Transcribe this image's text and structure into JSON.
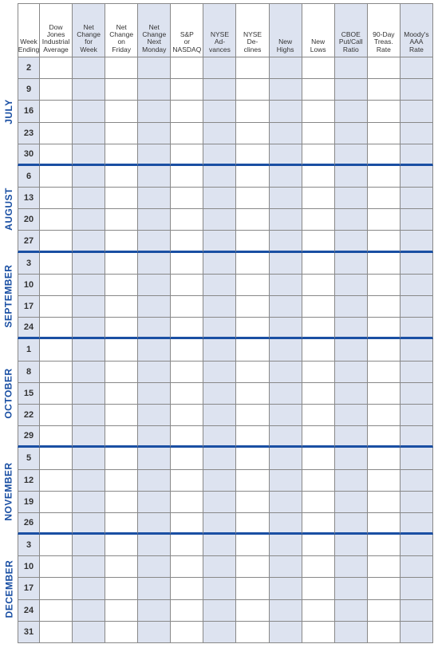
{
  "columns": [
    {
      "label": "Week\nEnding",
      "shaded": false
    },
    {
      "label": "Dow Jones\nIndustrial\nAverage",
      "shaded": false
    },
    {
      "label": "Net\nChange\nfor\nWeek",
      "shaded": true
    },
    {
      "label": "Net\nChange\non\nFriday",
      "shaded": false
    },
    {
      "label": "Net\nChange\nNext\nMonday",
      "shaded": true
    },
    {
      "label": "S&P\nor\nNASDAQ",
      "shaded": false
    },
    {
      "label": "NYSE\nAd-\nvances",
      "shaded": true
    },
    {
      "label": "NYSE\nDe-\nclines",
      "shaded": false
    },
    {
      "label": "New\nHighs",
      "shaded": true
    },
    {
      "label": "New\nLows",
      "shaded": false
    },
    {
      "label": "CBOE\nPut/Call\nRatio",
      "shaded": true
    },
    {
      "label": "90-Day\nTreas.\nRate",
      "shaded": false
    },
    {
      "label": "Moody's\nAAA\nRate",
      "shaded": true
    }
  ],
  "months": [
    {
      "name": "JULY",
      "weeks": [
        2,
        9,
        16,
        23,
        30
      ],
      "start": 0,
      "span": 5
    },
    {
      "name": "AUGUST",
      "weeks": [
        6,
        13,
        20,
        27
      ],
      "start": 5,
      "span": 4
    },
    {
      "name": "SEPTEMBER",
      "weeks": [
        3,
        10,
        17,
        24
      ],
      "start": 9,
      "span": 4
    },
    {
      "name": "OCTOBER",
      "weeks": [
        1,
        8,
        15,
        22,
        29
      ],
      "start": 13,
      "span": 5
    },
    {
      "name": "NOVEMBER",
      "weeks": [
        5,
        12,
        19,
        26
      ],
      "start": 18,
      "span": 4
    },
    {
      "name": "DECEMBER",
      "weeks": [
        3,
        10,
        17,
        24,
        31
      ],
      "start": 22,
      "span": 5
    }
  ],
  "colors": {
    "shade_bg": "#dde3f0",
    "border": "#888888",
    "accent": "#1a4fa3",
    "text": "#333333"
  },
  "row_count": 27,
  "header_fontsize": 8.5,
  "week_fontsize": 11,
  "month_fontsize": 12
}
